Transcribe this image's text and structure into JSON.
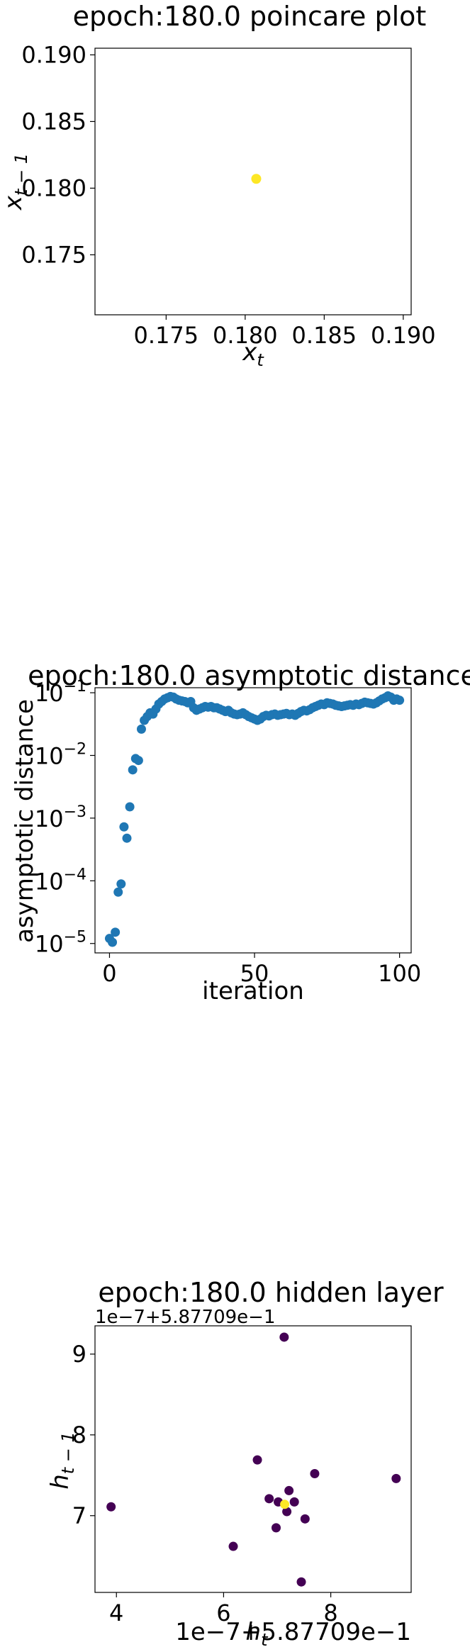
{
  "chart_data": [
    {
      "type": "scatter",
      "title": "epoch:180.0 poincare plot",
      "xlabel": "x_t",
      "ylabel": "x_t-1",
      "xlim": [
        0.1705,
        0.1905
      ],
      "ylim": [
        0.1705,
        0.1905
      ],
      "xticks": [
        "0.175",
        "0.180",
        "0.185",
        "0.190"
      ],
      "xtick_values": [
        0.175,
        0.18,
        0.185,
        0.19
      ],
      "yticks": [
        "0.175",
        "0.180",
        "0.185",
        "0.190"
      ],
      "ytick_values": [
        0.175,
        0.18,
        0.185,
        0.19
      ],
      "point_color": "#fde725",
      "points": [
        {
          "x": 0.1807,
          "y": 0.1807
        }
      ],
      "grid": false
    },
    {
      "type": "scatter",
      "title": "epoch:180.0 asymptotic distance",
      "xlabel": "iteration",
      "ylabel": "asymptotic distance",
      "yscale": "log",
      "xlim": [
        -5,
        104
      ],
      "ylim_log10": [
        -5.15,
        -0.92
      ],
      "xticks": [
        "0",
        "50",
        "100"
      ],
      "xtick_values": [
        0,
        50,
        100
      ],
      "yticks": [
        "10",
        "10",
        "10",
        "10",
        "10"
      ],
      "ytick_exponents": [
        "−5",
        "−4",
        "−3",
        "−2",
        "−1"
      ],
      "ytick_values": [
        -5,
        -4,
        -3,
        -2,
        -1
      ],
      "point_color": "#1f77b4",
      "log10_values": [
        -4.92,
        -4.98,
        -4.82,
        -4.18,
        -4.05,
        -3.14,
        -3.32,
        -2.82,
        -2.23,
        -2.05,
        -2.08,
        -1.58,
        -1.44,
        -1.38,
        -1.32,
        -1.34,
        -1.26,
        -1.18,
        -1.14,
        -1.1,
        -1.08,
        -1.06,
        -1.07,
        -1.1,
        -1.12,
        -1.13,
        -1.14,
        -1.16,
        -1.14,
        -1.24,
        -1.28,
        -1.26,
        -1.24,
        -1.22,
        -1.23,
        -1.22,
        -1.24,
        -1.24,
        -1.26,
        -1.28,
        -1.3,
        -1.28,
        -1.32,
        -1.34,
        -1.35,
        -1.34,
        -1.32,
        -1.35,
        -1.38,
        -1.4,
        -1.42,
        -1.44,
        -1.42,
        -1.38,
        -1.36,
        -1.37,
        -1.35,
        -1.34,
        -1.36,
        -1.35,
        -1.34,
        -1.33,
        -1.35,
        -1.34,
        -1.36,
        -1.33,
        -1.3,
        -1.28,
        -1.29,
        -1.27,
        -1.24,
        -1.22,
        -1.2,
        -1.18,
        -1.19,
        -1.16,
        -1.17,
        -1.18,
        -1.2,
        -1.21,
        -1.22,
        -1.21,
        -1.2,
        -1.19,
        -1.2,
        -1.18,
        -1.19,
        -1.17,
        -1.15,
        -1.16,
        -1.17,
        -1.18,
        -1.16,
        -1.13,
        -1.1,
        -1.08,
        -1.05,
        -1.07,
        -1.12,
        -1.1,
        -1.12
      ],
      "grid": false
    },
    {
      "type": "scatter",
      "title": "epoch:180.0 hidden layer",
      "xlabel": "h_t",
      "ylabel": "h_t-1",
      "x_offset_text": "1e−7+5.87709e−1",
      "y_offset_text": "1e−7+5.87709e−1",
      "xlim": [
        3.6,
        9.5
      ],
      "ylim": [
        6.05,
        9.35
      ],
      "xticks": [
        "4",
        "6",
        "8"
      ],
      "xtick_values": [
        4,
        6,
        8
      ],
      "yticks": [
        "7",
        "8",
        "9"
      ],
      "ytick_values": [
        7,
        8,
        9
      ],
      "points": [
        {
          "x": 7.13,
          "y": 9.21,
          "c": "#440154"
        },
        {
          "x": 6.63,
          "y": 7.69,
          "c": "#440154"
        },
        {
          "x": 7.7,
          "y": 7.52,
          "c": "#440154"
        },
        {
          "x": 9.22,
          "y": 7.46,
          "c": "#440154"
        },
        {
          "x": 3.9,
          "y": 7.11,
          "c": "#440154"
        },
        {
          "x": 6.18,
          "y": 6.62,
          "c": "#440154"
        },
        {
          "x": 7.45,
          "y": 6.18,
          "c": "#440154"
        },
        {
          "x": 7.22,
          "y": 7.31,
          "c": "#440154"
        },
        {
          "x": 6.85,
          "y": 7.21,
          "c": "#440154"
        },
        {
          "x": 7.32,
          "y": 7.17,
          "c": "#440154"
        },
        {
          "x": 7.52,
          "y": 6.96,
          "c": "#440154"
        },
        {
          "x": 6.98,
          "y": 6.85,
          "c": "#440154"
        },
        {
          "x": 7.18,
          "y": 7.05,
          "c": "#440154"
        },
        {
          "x": 7.02,
          "y": 7.17,
          "c": "#440154"
        },
        {
          "x": 7.14,
          "y": 7.14,
          "c": "#fde725"
        }
      ],
      "grid": false
    }
  ]
}
